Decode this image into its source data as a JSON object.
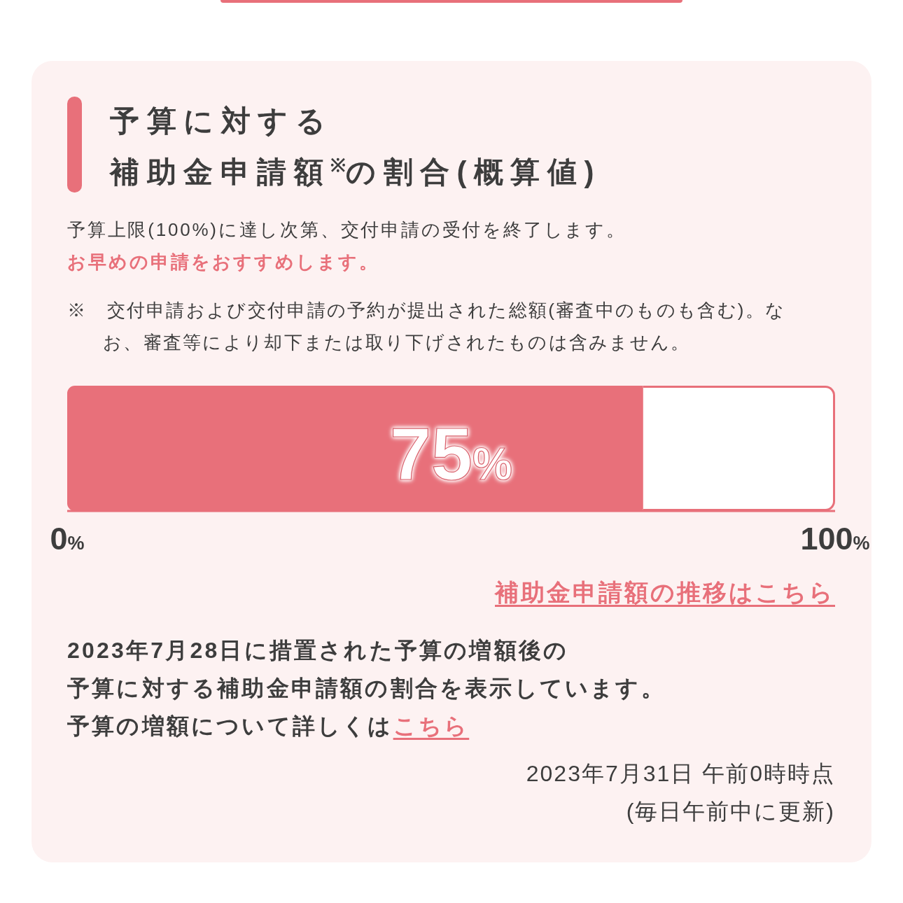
{
  "chart_data": {
    "type": "bar",
    "orientation": "horizontal",
    "title": "予算に対する補助金申請額$^{※}$の割合(概算値)",
    "subtitle": "予算上限(100%)に達し次第、交付申請の受付を終了します。",
    "categories": [
      null
    ],
    "values": [
      75
    ],
    "value_labels": [
      "75%"
    ],
    "color": "#e8707a",
    "xlim": [
      0,
      100
    ],
    "xticks": [
      {
        "value": 0,
        "label": "0%"
      },
      {
        "value": 100,
        "label": "100%"
      }
    ],
    "tick_labels": "x",
    "annotations": [
      "お早めの申請をおすすめします。",
      "※　交付申請および交付申請の予約が提出された総額(審査中のものも含む)。なお、審査等により却下または取り下げされたものは含みません。",
      "補助金申請額の推移はこちら",
      "2023年7月28日に措置された予算の増額後の",
      "予算に対する補助金申請額の割合を表示しています。",
      "予算の増額について詳しくは",
      "こちら",
      "2023年7月31日 午前0時時点\n(毎日午前中に更新)"
    ]
  }
}
